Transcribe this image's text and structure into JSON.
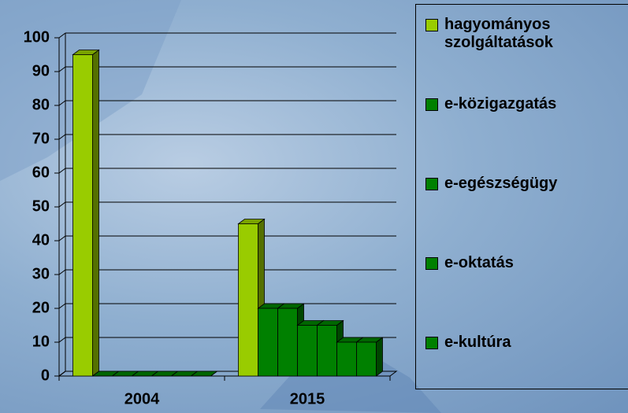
{
  "chart_data": {
    "type": "bar3d",
    "categories": [
      "2004",
      "2015"
    ],
    "series": [
      {
        "name": "hagyományos szolgáltatások",
        "color": "#99cc00",
        "values": [
          95,
          45
        ]
      },
      {
        "name": "e-közigazgatás",
        "color": "#008000",
        "values": [
          0,
          20
        ]
      },
      {
        "name": "e-egészségügy",
        "color": "#008000",
        "values": [
          0,
          20
        ]
      },
      {
        "name": "e-oktatás",
        "color": "#008000",
        "values": [
          0,
          15
        ]
      },
      {
        "name": "e-kultúra",
        "color": "#008000",
        "values": [
          0,
          15
        ]
      },
      {
        "color": "#008000",
        "values": [
          0,
          10
        ]
      },
      {
        "color": "#008000",
        "values": [
          0,
          10
        ]
      }
    ],
    "ylim": [
      0,
      100
    ],
    "yticks": [
      0,
      10,
      20,
      30,
      40,
      50,
      60,
      70,
      80,
      90,
      100
    ],
    "grid": true
  }
}
